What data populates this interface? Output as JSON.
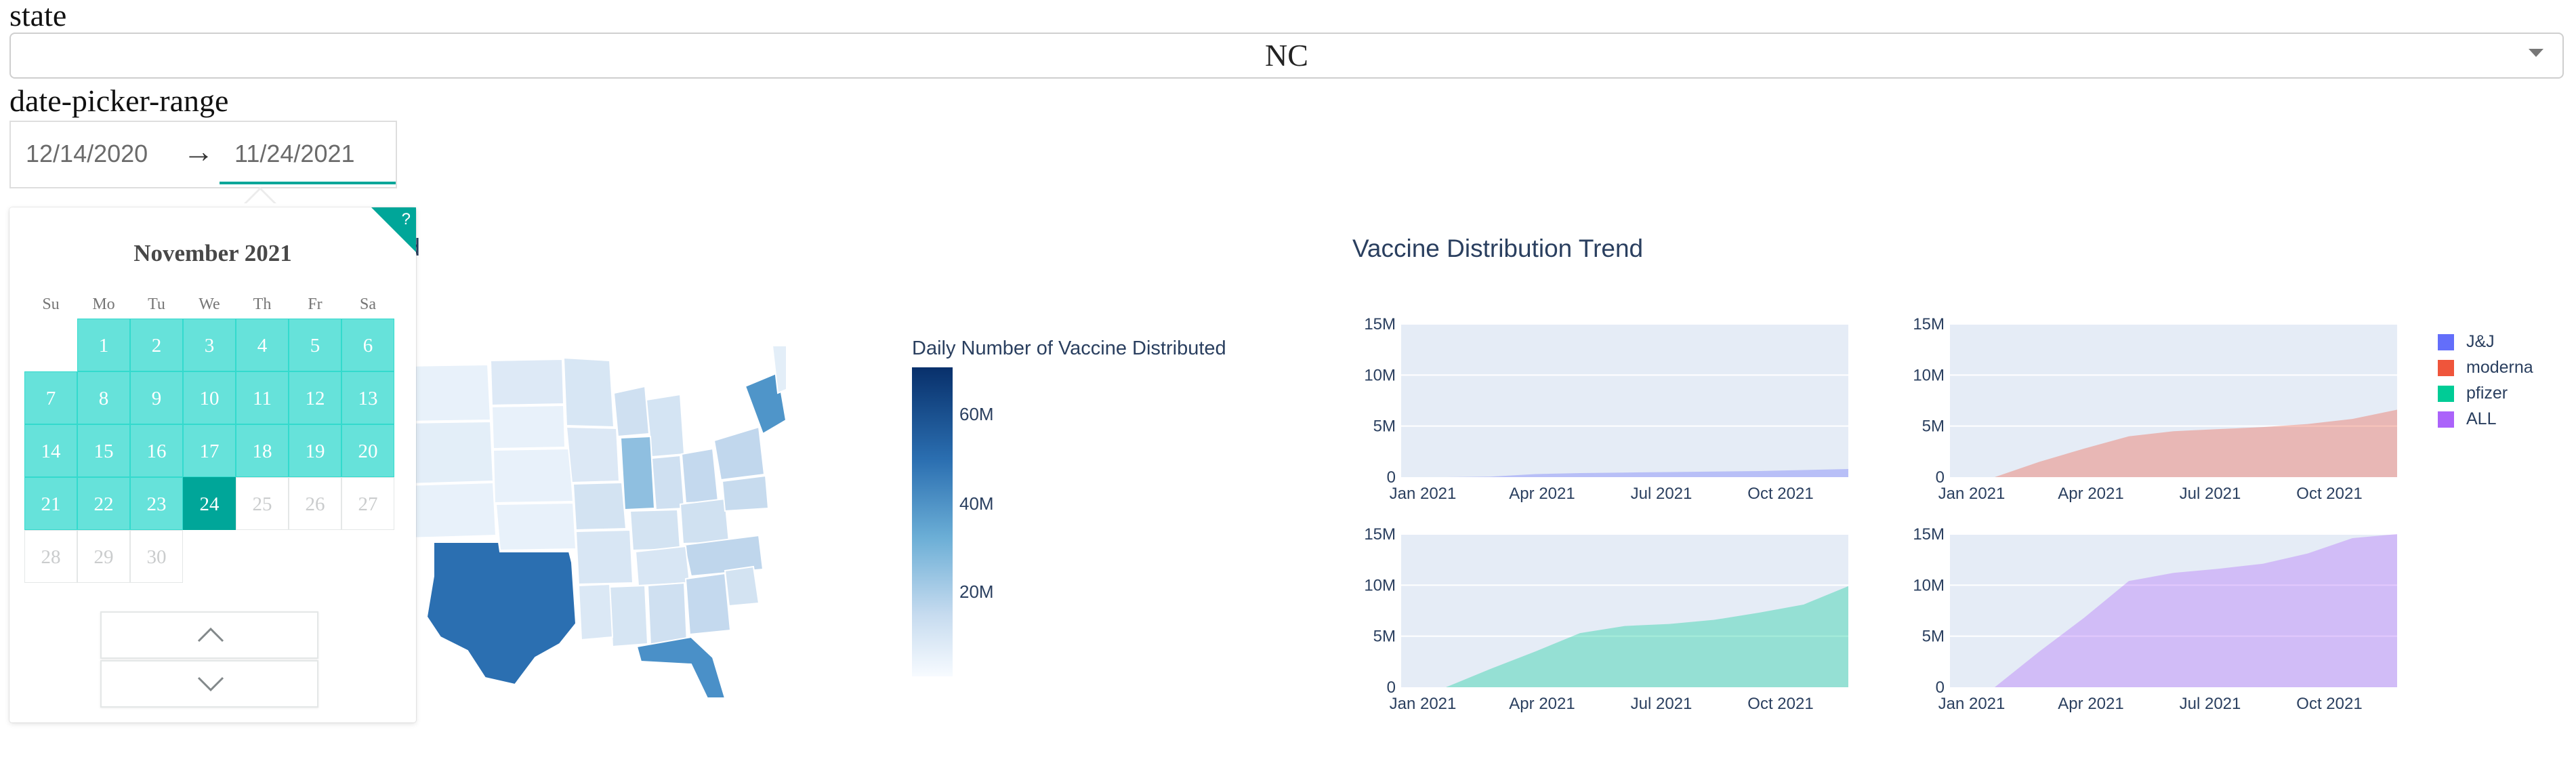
{
  "state": {
    "label": "state",
    "selected": "NC"
  },
  "date_range": {
    "label": "date-picker-range",
    "start": "12/14/2020",
    "arrow": "→",
    "end": "11/24/2021"
  },
  "calendar": {
    "month": "November 2021",
    "help": "?",
    "weekdays": [
      "Su",
      "Mo",
      "Tu",
      "We",
      "Th",
      "Fr",
      "Sa"
    ],
    "first_weekday_index": 1,
    "days_in_month": 30,
    "in_range_until": 23,
    "selected_day": 24
  },
  "map": {
    "title_fragment": "d",
    "colorbar_title": "Daily Number of Vaccine Distributed",
    "colorbar_ticks": [
      "60M",
      "40M",
      "20M"
    ],
    "colors": {
      "dark": "#2b6fb1",
      "mid": "#6baed6",
      "light": "#c6dbef",
      "pale": "#e8f1fa"
    }
  },
  "trend": {
    "title": "Vaccine Distribution Trend",
    "legend": [
      {
        "name": "J&J",
        "color": "#636efa"
      },
      {
        "name": "moderna",
        "color": "#ef553b"
      },
      {
        "name": "pfizer",
        "color": "#00cc96"
      },
      {
        "name": "ALL",
        "color": "#ab63fa"
      }
    ]
  },
  "chart_data": [
    {
      "type": "area",
      "x": [
        "2021-01",
        "2021-02",
        "2021-03",
        "2021-04",
        "2021-05",
        "2021-06",
        "2021-07",
        "2021-08",
        "2021-09",
        "2021-10",
        "2021-11"
      ],
      "series": [
        {
          "name": "J&J",
          "values": [
            0,
            0,
            0.05,
            0.3,
            0.4,
            0.45,
            0.5,
            0.55,
            0.6,
            0.7,
            0.8
          ]
        }
      ],
      "y_ticks": [
        "0",
        "5M",
        "10M",
        "15M"
      ],
      "x_ticks": [
        "Jan 2021",
        "Apr 2021",
        "Jul 2021",
        "Oct 2021"
      ],
      "ylim": [
        0,
        15000000
      ]
    },
    {
      "type": "area",
      "x": [
        "2021-01",
        "2021-02",
        "2021-03",
        "2021-04",
        "2021-05",
        "2021-06",
        "2021-07",
        "2021-08",
        "2021-09",
        "2021-10",
        "2021-11"
      ],
      "series": [
        {
          "name": "moderna",
          "values": [
            0,
            0,
            1.5,
            2.8,
            4.0,
            4.5,
            4.7,
            4.9,
            5.2,
            5.7,
            6.6
          ]
        }
      ],
      "y_ticks": [
        "0",
        "5M",
        "10M",
        "15M"
      ],
      "x_ticks": [
        "Jan 2021",
        "Apr 2021",
        "Jul 2021",
        "Oct 2021"
      ],
      "ylim": [
        0,
        15000000
      ]
    },
    {
      "type": "area",
      "x": [
        "2021-01",
        "2021-02",
        "2021-03",
        "2021-04",
        "2021-05",
        "2021-06",
        "2021-07",
        "2021-08",
        "2021-09",
        "2021-10",
        "2021-11"
      ],
      "series": [
        {
          "name": "pfizer",
          "values": [
            0,
            0,
            1.8,
            3.5,
            5.3,
            6.0,
            6.2,
            6.6,
            7.3,
            8.1,
            9.9
          ]
        }
      ],
      "y_ticks": [
        "0",
        "5M",
        "10M",
        "15M"
      ],
      "x_ticks": [
        "Jan 2021",
        "Apr 2021",
        "Jul 2021",
        "Oct 2021"
      ],
      "ylim": [
        0,
        15000000
      ]
    },
    {
      "type": "area",
      "x": [
        "2021-01",
        "2021-02",
        "2021-03",
        "2021-04",
        "2021-05",
        "2021-06",
        "2021-07",
        "2021-08",
        "2021-09",
        "2021-10",
        "2021-11"
      ],
      "series": [
        {
          "name": "ALL",
          "values": [
            0,
            0,
            3.5,
            6.8,
            10.4,
            11.2,
            11.6,
            12.1,
            13.1,
            14.6,
            15
          ]
        }
      ],
      "y_ticks": [
        "0",
        "5M",
        "10M",
        "15M"
      ],
      "x_ticks": [
        "Jan 2021",
        "Apr 2021",
        "Jul 2021",
        "Oct 2021"
      ],
      "ylim": [
        0,
        15000000
      ]
    }
  ]
}
